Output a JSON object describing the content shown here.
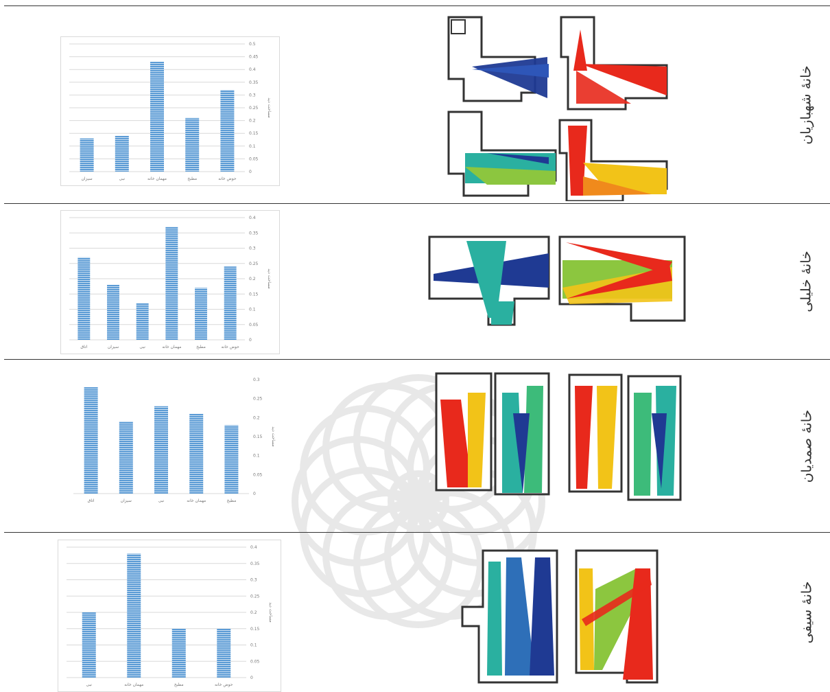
{
  "rows": [
    {
      "house_label": "خانۀ شهبازیان",
      "chart_data": {
        "type": "bar",
        "categories": [
          "سیزان",
          "نبی",
          "مهمان خانه",
          "مطبخ",
          "حوض خانه"
        ],
        "values": [
          0.13,
          0.14,
          0.43,
          0.21,
          0.32
        ],
        "ylim": [
          0,
          0.5
        ],
        "yticks": [
          "0.5",
          "0.45",
          "0.4",
          "0.35",
          "0.3",
          "0.25",
          "0.2",
          "0.15",
          "0.1",
          "0.05",
          "0"
        ],
        "ylabel": "مساحت دید",
        "title": "",
        "xlabel": "",
        "bar_color": "#5b9bd5",
        "grid": true
      }
    },
    {
      "house_label": "خانۀ خلیلی",
      "chart_data": {
        "type": "bar",
        "categories": [
          "اتاق",
          "سیزان",
          "نبی",
          "مهمان خانه",
          "مطبخ",
          "حوض خانه"
        ],
        "values": [
          0.27,
          0.18,
          0.12,
          0.37,
          0.17,
          0.24
        ],
        "ylim": [
          0,
          0.4
        ],
        "yticks": [
          "0.4",
          "0.35",
          "0.3",
          "0.25",
          "0.2",
          "0.15",
          "0.1",
          "0.05",
          "0"
        ],
        "ylabel": "مساحت دید",
        "title": "",
        "xlabel": "",
        "bar_color": "#5b9bd5",
        "grid": true
      }
    },
    {
      "house_label": "خانۀ صمدیان",
      "chart_data": {
        "type": "bar",
        "categories": [
          "اتاق",
          "سیزان",
          "نبی",
          "مهمان خانه",
          "مطبخ"
        ],
        "values": [
          0.28,
          0.19,
          0.23,
          0.21,
          0.18
        ],
        "ylim": [
          0,
          0.3
        ],
        "yticks": [
          "0.3",
          "0.25",
          "0.2",
          "0.15",
          "0.1",
          "0.05",
          "0"
        ],
        "ylabel": "مساحت دید",
        "title": "",
        "xlabel": "",
        "bar_color": "#5b9bd5",
        "grid": false
      }
    },
    {
      "house_label": "خانۀ سیفی",
      "chart_data": {
        "type": "bar",
        "categories": [
          "نبی",
          "مهمان خانه",
          "مطبخ",
          "حوض خانه"
        ],
        "values": [
          0.2,
          0.38,
          0.15,
          0.15
        ],
        "ylim": [
          0,
          0.4
        ],
        "yticks": [
          "0.4",
          "0.35",
          "0.3",
          "0.25",
          "0.2",
          "0.15",
          "0.1",
          "0.05",
          "0"
        ],
        "ylabel": "مساحت دید",
        "title": "",
        "xlabel": "",
        "bar_color": "#5b9bd5",
        "grid": true
      }
    }
  ],
  "plan_colors": {
    "blue": "#1f3a93",
    "red": "#e8291c",
    "teal": "#2ab0a0",
    "green": "#8cc63f",
    "yellow": "#f2c318",
    "orange": "#f08a1c",
    "outline": "#333333"
  }
}
